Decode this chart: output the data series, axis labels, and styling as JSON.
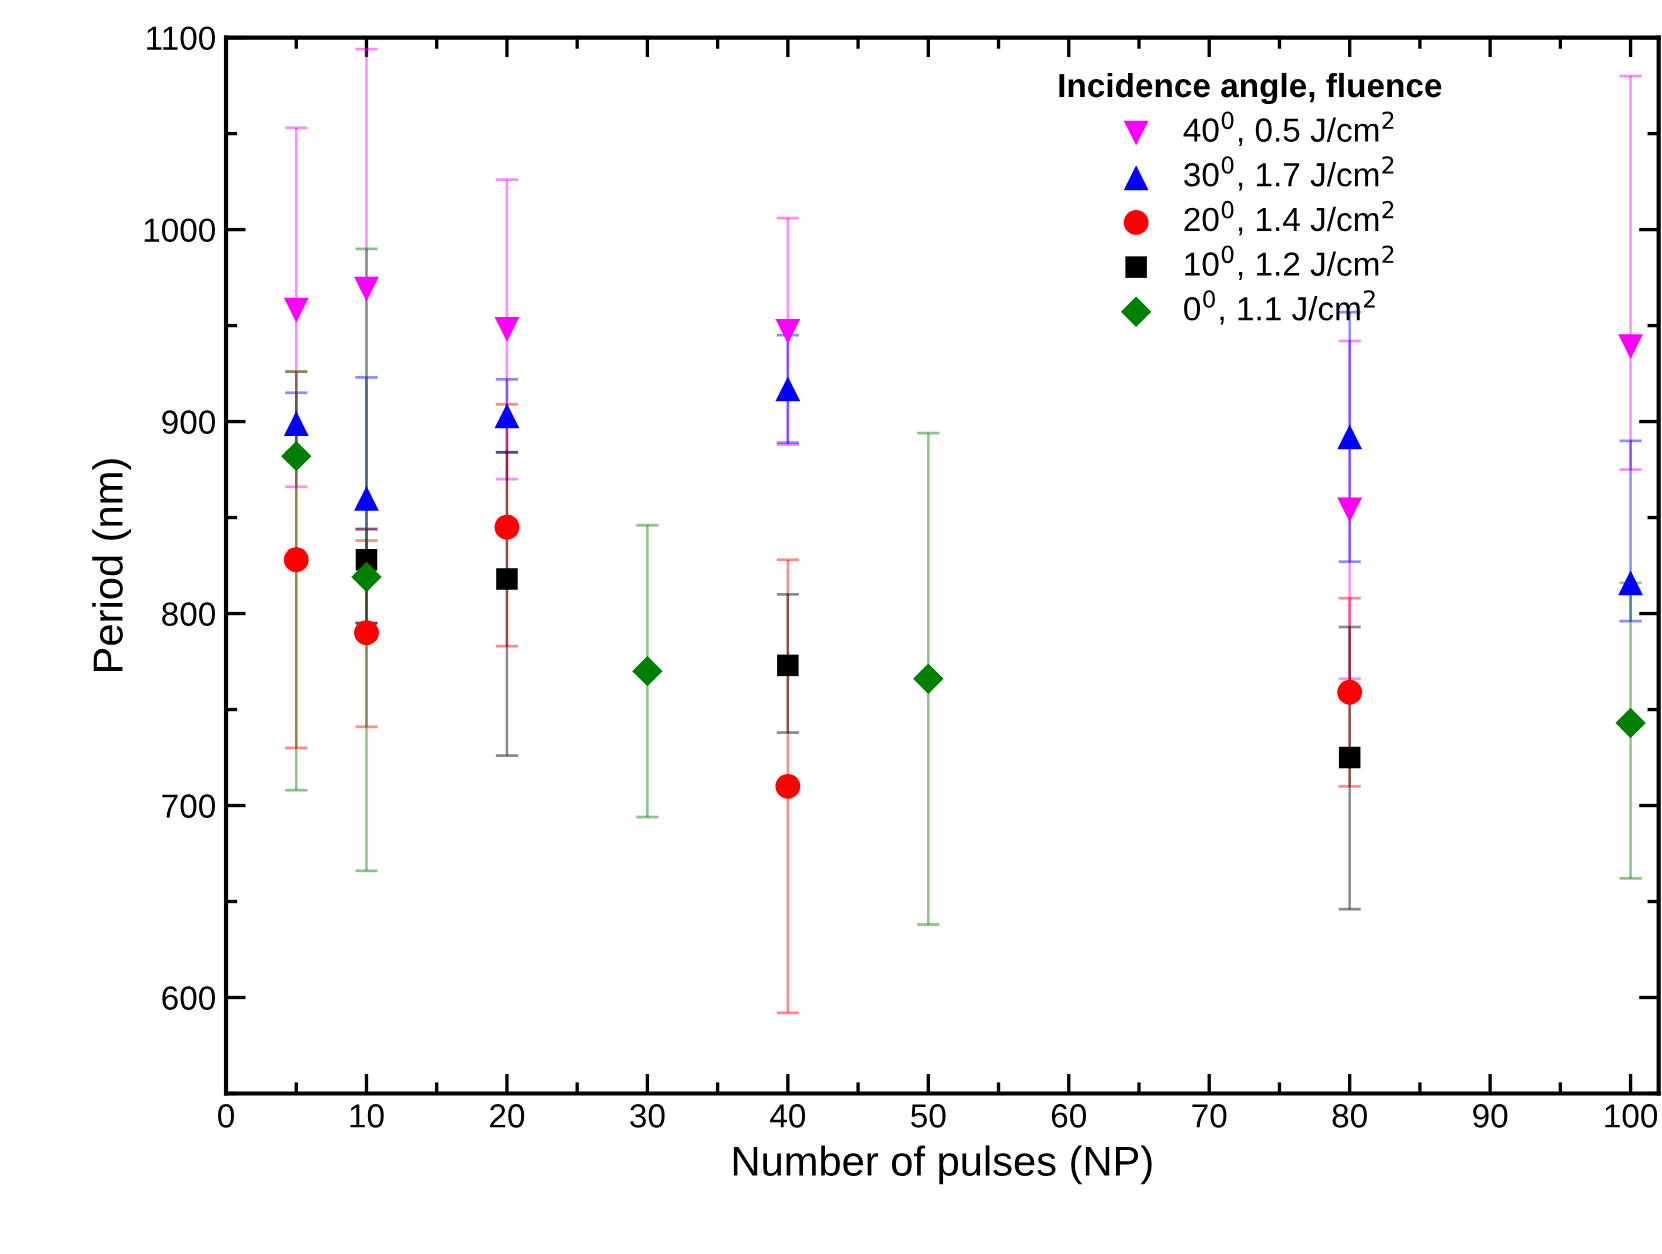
{
  "chart_data": {
    "type": "scatter",
    "xlabel": "Number of pulses (NP)",
    "ylabel": "Period (nm)",
    "legend_title": "Incidence angle, fluence",
    "legend": "top right",
    "grid": false,
    "xlim": [
      0,
      102
    ],
    "xticks": [
      0,
      10,
      20,
      30,
      40,
      50,
      60,
      70,
      80,
      90,
      100
    ],
    "ylim": [
      550,
      1100
    ],
    "yticks": [
      600,
      700,
      800,
      900,
      1000,
      1100
    ],
    "series": [
      {
        "name": "40$^{0}$, 0.5 J/cm$^{2}$",
        "color": "#ff00ff",
        "marker": "triangle_down",
        "x": [
          5,
          10,
          20,
          40,
          80,
          100
        ],
        "values": [
          958,
          969,
          948,
          947,
          854,
          939
        ],
        "errors": [
          [
            866,
            1053
          ],
          [
            844,
            1094
          ],
          [
            870,
            1026
          ],
          [
            888,
            1006
          ],
          [
            766,
            942
          ],
          [
            875,
            1080
          ]
        ]
      },
      {
        "name": "30$^{0}$, 1.7 J/cm$^{2}$",
        "color": "#0000ff",
        "marker": "triangle",
        "x": [
          5,
          10,
          20,
          40,
          80,
          100
        ],
        "values": [
          899,
          860,
          903,
          917,
          892,
          816
        ],
        "errors": [
          [
            884,
            915
          ],
          [
            795,
            923
          ],
          [
            884,
            922
          ],
          [
            889,
            945
          ],
          [
            827,
            957
          ],
          [
            796,
            890
          ]
        ]
      },
      {
        "name": "20$^{0}$, 1.4 J/cm$^{2}$",
        "color": "#ff0000",
        "marker": "circle",
        "x": [
          5,
          10,
          20,
          40,
          80
        ],
        "values": [
          828,
          790,
          845,
          710,
          759
        ],
        "errors": [
          [
            730,
            926
          ],
          [
            741,
            838
          ],
          [
            783,
            909
          ],
          [
            592,
            828
          ],
          [
            710,
            808
          ]
        ]
      },
      {
        "name": "10$^{0}$, 1.2 J/cm$^{2}$",
        "color": "#000000",
        "marker": "square",
        "x": [
          10,
          20,
          40,
          80
        ],
        "values": [
          828,
          818,
          773,
          725
        ],
        "errors": [
          [
            795,
            844
          ],
          [
            726,
            884
          ],
          [
            738,
            810
          ],
          [
            646,
            793
          ]
        ]
      },
      {
        "name": "0$^{0}$, 1.1 J/cm$^{2}$",
        "color": "#007f00",
        "marker": "diamond",
        "x": [
          5,
          10,
          30,
          50,
          100
        ],
        "values": [
          882,
          819,
          770,
          766,
          743
        ],
        "errors": [
          [
            708,
            926
          ],
          [
            666,
            990
          ],
          [
            694,
            846
          ],
          [
            638,
            894
          ],
          [
            662,
            816
          ]
        ]
      }
    ]
  }
}
